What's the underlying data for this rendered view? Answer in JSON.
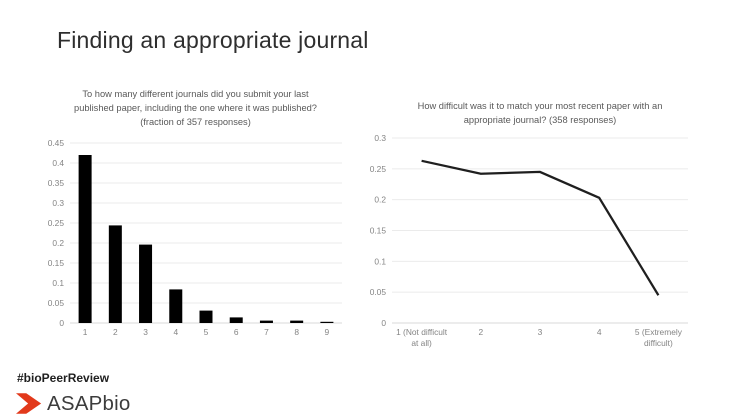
{
  "slide": {
    "title": "Finding an appropriate journal",
    "hashtag": "#bioPeerReview",
    "logo_text": "ASAPbio",
    "logo_color": "#E2391B",
    "background": "#ffffff",
    "text_color": "#2e2e2e",
    "axis_label_color": "#848484",
    "gridline_color": "#ebebeb"
  },
  "chart_data": [
    {
      "type": "bar",
      "title": "To how many different journals did you submit your last published paper, including the one where it was published? (fraction of 357 responses)",
      "categories": [
        "1",
        "2",
        "3",
        "4",
        "5",
        "6",
        "7",
        "8",
        "9"
      ],
      "values": [
        0.42,
        0.244,
        0.196,
        0.084,
        0.031,
        0.014,
        0.006,
        0.006,
        0.003
      ],
      "xlabel": "",
      "ylabel": "",
      "ylim": [
        0,
        0.45
      ],
      "yticks": [
        "0",
        "0.05",
        "0.1",
        "0.15",
        "0.2",
        "0.25",
        "0.3",
        "0.35",
        "0.4",
        "0.45"
      ],
      "grid": true,
      "legend": false,
      "bar_color": "#000000"
    },
    {
      "type": "line",
      "title": "How difficult was it to match your most recent paper with an appropriate journal? (358 responses)",
      "categories": [
        "1 (Not difficult\nat all)",
        "2",
        "3",
        "4",
        "5 (Extremely\ndifficult)"
      ],
      "values": [
        0.263,
        0.242,
        0.245,
        0.203,
        0.045
      ],
      "xlabel": "",
      "ylabel": "",
      "ylim": [
        0,
        0.3
      ],
      "yticks": [
        "0",
        "0.05",
        "0.1",
        "0.15",
        "0.2",
        "0.25",
        "0.3"
      ],
      "grid": true,
      "legend": false,
      "line_color": "#1f1f1f"
    }
  ]
}
